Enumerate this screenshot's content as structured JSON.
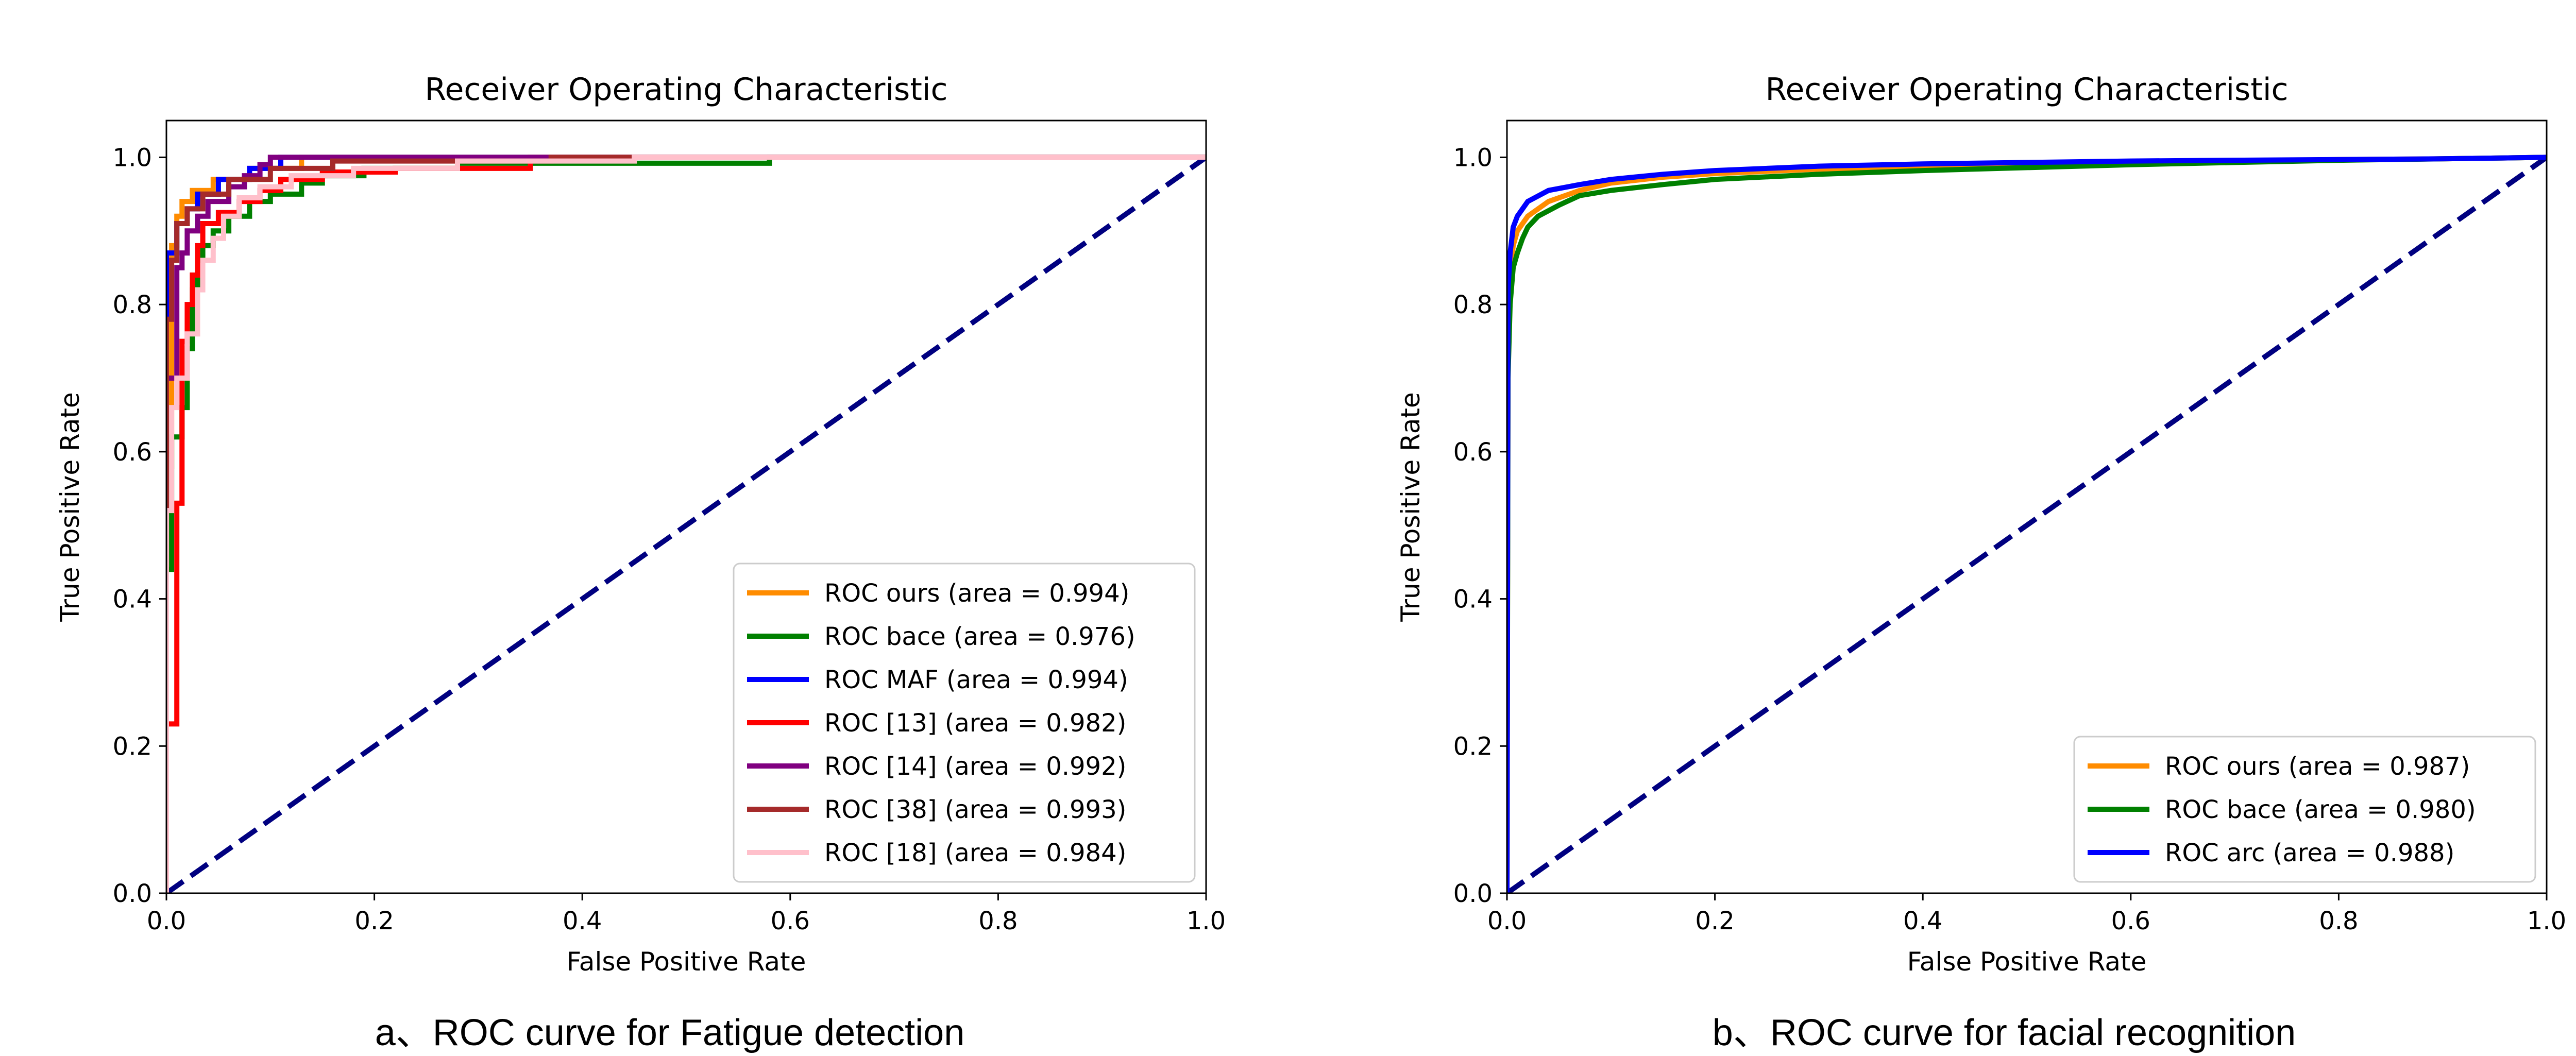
{
  "captions": {
    "left": "a、ROC curve for Fatigue detection",
    "right": "b、ROC curve for facial recognition"
  },
  "chart_data": [
    {
      "type": "line",
      "title": "Receiver Operating Characteristic",
      "xlabel": "False Positive Rate",
      "ylabel": "True Positive Rate",
      "xlim": [
        0.0,
        1.0
      ],
      "ylim": [
        0.0,
        1.05
      ],
      "xticks": [
        "0.0",
        "0.2",
        "0.4",
        "0.6",
        "0.8",
        "1.0"
      ],
      "yticks": [
        "0.0",
        "0.2",
        "0.4",
        "0.6",
        "0.8",
        "1.0"
      ],
      "grid": false,
      "legend_position": "lower-right",
      "series": [
        {
          "name": "ROC ours (area = 0.994)",
          "color": "#ff8c00",
          "points": [
            [
              0,
              0
            ],
            [
              0,
              0.58
            ],
            [
              0.005,
              0.58
            ],
            [
              0.005,
              0.88
            ],
            [
              0.01,
              0.88
            ],
            [
              0.01,
              0.92
            ],
            [
              0.015,
              0.92
            ],
            [
              0.015,
              0.94
            ],
            [
              0.025,
              0.94
            ],
            [
              0.025,
              0.955
            ],
            [
              0.045,
              0.955
            ],
            [
              0.045,
              0.97
            ],
            [
              0.08,
              0.97
            ],
            [
              0.08,
              0.985
            ],
            [
              0.13,
              0.985
            ],
            [
              0.13,
              1.0
            ],
            [
              1.0,
              1.0
            ]
          ]
        },
        {
          "name": "ROC bace (area = 0.976)",
          "color": "#008000",
          "points": [
            [
              0,
              0
            ],
            [
              0,
              0.44
            ],
            [
              0.005,
              0.44
            ],
            [
              0.005,
              0.62
            ],
            [
              0.015,
              0.62
            ],
            [
              0.015,
              0.66
            ],
            [
              0.02,
              0.66
            ],
            [
              0.02,
              0.74
            ],
            [
              0.025,
              0.74
            ],
            [
              0.025,
              0.82
            ],
            [
              0.03,
              0.82
            ],
            [
              0.03,
              0.86
            ],
            [
              0.035,
              0.86
            ],
            [
              0.035,
              0.88
            ],
            [
              0.045,
              0.88
            ],
            [
              0.045,
              0.9
            ],
            [
              0.06,
              0.9
            ],
            [
              0.06,
              0.92
            ],
            [
              0.08,
              0.92
            ],
            [
              0.08,
              0.94
            ],
            [
              0.1,
              0.94
            ],
            [
              0.1,
              0.95
            ],
            [
              0.13,
              0.95
            ],
            [
              0.13,
              0.965
            ],
            [
              0.15,
              0.965
            ],
            [
              0.15,
              0.975
            ],
            [
              0.19,
              0.975
            ],
            [
              0.19,
              0.985
            ],
            [
              0.28,
              0.985
            ],
            [
              0.28,
              0.992
            ],
            [
              0.58,
              0.992
            ],
            [
              0.58,
              1.0
            ],
            [
              1.0,
              1.0
            ]
          ]
        },
        {
          "name": "ROC MAF (area = 0.994)",
          "color": "#0000ff",
          "points": [
            [
              0,
              0
            ],
            [
              0,
              0.87
            ],
            [
              0.01,
              0.87
            ],
            [
              0.01,
              0.91
            ],
            [
              0.02,
              0.91
            ],
            [
              0.02,
              0.93
            ],
            [
              0.03,
              0.93
            ],
            [
              0.03,
              0.95
            ],
            [
              0.05,
              0.95
            ],
            [
              0.05,
              0.97
            ],
            [
              0.08,
              0.97
            ],
            [
              0.08,
              0.985
            ],
            [
              0.11,
              0.985
            ],
            [
              0.11,
              1.0
            ],
            [
              1.0,
              1.0
            ]
          ]
        },
        {
          "name": "ROC [13] (area = 0.982)",
          "color": "#ff0000",
          "points": [
            [
              0,
              0
            ],
            [
              0,
              0.23
            ],
            [
              0.01,
              0.23
            ],
            [
              0.01,
              0.53
            ],
            [
              0.015,
              0.53
            ],
            [
              0.015,
              0.75
            ],
            [
              0.02,
              0.75
            ],
            [
              0.02,
              0.8
            ],
            [
              0.025,
              0.8
            ],
            [
              0.025,
              0.84
            ],
            [
              0.03,
              0.84
            ],
            [
              0.03,
              0.88
            ],
            [
              0.035,
              0.88
            ],
            [
              0.035,
              0.91
            ],
            [
              0.05,
              0.91
            ],
            [
              0.05,
              0.925
            ],
            [
              0.07,
              0.925
            ],
            [
              0.07,
              0.94
            ],
            [
              0.09,
              0.94
            ],
            [
              0.09,
              0.955
            ],
            [
              0.11,
              0.955
            ],
            [
              0.11,
              0.97
            ],
            [
              0.15,
              0.97
            ],
            [
              0.15,
              0.98
            ],
            [
              0.22,
              0.98
            ],
            [
              0.22,
              0.985
            ],
            [
              0.35,
              0.985
            ],
            [
              0.35,
              1.0
            ],
            [
              1.0,
              1.0
            ]
          ]
        },
        {
          "name": "ROC [14] (area = 0.992)",
          "color": "#800080",
          "points": [
            [
              0,
              0
            ],
            [
              0,
              0.7
            ],
            [
              0.01,
              0.7
            ],
            [
              0.01,
              0.85
            ],
            [
              0.015,
              0.85
            ],
            [
              0.015,
              0.87
            ],
            [
              0.02,
              0.87
            ],
            [
              0.02,
              0.9
            ],
            [
              0.03,
              0.9
            ],
            [
              0.03,
              0.92
            ],
            [
              0.04,
              0.92
            ],
            [
              0.04,
              0.94
            ],
            [
              0.06,
              0.94
            ],
            [
              0.06,
              0.96
            ],
            [
              0.075,
              0.96
            ],
            [
              0.075,
              0.975
            ],
            [
              0.09,
              0.975
            ],
            [
              0.09,
              0.99
            ],
            [
              0.1,
              0.99
            ],
            [
              0.1,
              1.0
            ],
            [
              1.0,
              1.0
            ]
          ]
        },
        {
          "name": "ROC [38] (area = 0.993)",
          "color": "#a52a2a",
          "points": [
            [
              0,
              0
            ],
            [
              0,
              0.78
            ],
            [
              0.005,
              0.78
            ],
            [
              0.005,
              0.86
            ],
            [
              0.01,
              0.86
            ],
            [
              0.01,
              0.91
            ],
            [
              0.02,
              0.91
            ],
            [
              0.02,
              0.93
            ],
            [
              0.035,
              0.93
            ],
            [
              0.035,
              0.95
            ],
            [
              0.06,
              0.95
            ],
            [
              0.06,
              0.97
            ],
            [
              0.1,
              0.97
            ],
            [
              0.1,
              0.985
            ],
            [
              0.16,
              0.985
            ],
            [
              0.16,
              0.995
            ],
            [
              0.37,
              0.995
            ],
            [
              0.37,
              1.0
            ],
            [
              1.0,
              1.0
            ]
          ]
        },
        {
          "name": "ROC [18] (area = 0.984)",
          "color": "#ffc0cb",
          "points": [
            [
              0,
              0
            ],
            [
              0,
              0.52
            ],
            [
              0.005,
              0.52
            ],
            [
              0.005,
              0.66
            ],
            [
              0.01,
              0.66
            ],
            [
              0.01,
              0.7
            ],
            [
              0.02,
              0.7
            ],
            [
              0.02,
              0.76
            ],
            [
              0.03,
              0.76
            ],
            [
              0.03,
              0.82
            ],
            [
              0.035,
              0.82
            ],
            [
              0.035,
              0.86
            ],
            [
              0.045,
              0.86
            ],
            [
              0.045,
              0.89
            ],
            [
              0.055,
              0.89
            ],
            [
              0.055,
              0.92
            ],
            [
              0.07,
              0.92
            ],
            [
              0.07,
              0.945
            ],
            [
              0.09,
              0.945
            ],
            [
              0.09,
              0.96
            ],
            [
              0.12,
              0.96
            ],
            [
              0.12,
              0.975
            ],
            [
              0.18,
              0.975
            ],
            [
              0.18,
              0.985
            ],
            [
              0.28,
              0.985
            ],
            [
              0.28,
              0.995
            ],
            [
              0.45,
              0.995
            ],
            [
              0.45,
              1.0
            ],
            [
              1.0,
              1.0
            ]
          ]
        }
      ],
      "reference_line": {
        "points": [
          [
            0,
            0
          ],
          [
            1,
            1
          ]
        ],
        "color": "#000080",
        "style": "dashed"
      }
    },
    {
      "type": "line",
      "title": "Receiver Operating Characteristic",
      "xlabel": "False Positive Rate",
      "ylabel": "True Positive Rate",
      "xlim": [
        0.0,
        1.0
      ],
      "ylim": [
        0.0,
        1.05
      ],
      "xticks": [
        "0.0",
        "0.2",
        "0.4",
        "0.6",
        "0.8",
        "1.0"
      ],
      "yticks": [
        "0.0",
        "0.2",
        "0.4",
        "0.6",
        "0.8",
        "1.0"
      ],
      "grid": false,
      "legend_position": "lower-right",
      "series": [
        {
          "name": "ROC ours (area = 0.987)",
          "color": "#ff8c00",
          "points": [
            [
              0,
              0
            ],
            [
              0.001,
              0.75
            ],
            [
              0.003,
              0.84
            ],
            [
              0.006,
              0.88
            ],
            [
              0.01,
              0.9
            ],
            [
              0.02,
              0.92
            ],
            [
              0.04,
              0.94
            ],
            [
              0.07,
              0.955
            ],
            [
              0.1,
              0.965
            ],
            [
              0.15,
              0.973
            ],
            [
              0.2,
              0.978
            ],
            [
              0.3,
              0.984
            ],
            [
              0.4,
              0.988
            ],
            [
              0.5,
              0.99
            ],
            [
              0.6,
              0.993
            ],
            [
              0.7,
              0.995
            ],
            [
              0.8,
              0.997
            ],
            [
              0.9,
              0.998
            ],
            [
              1.0,
              1.0
            ]
          ]
        },
        {
          "name": "ROC bace (area = 0.980)",
          "color": "#008000",
          "points": [
            [
              0,
              0
            ],
            [
              0.001,
              0.7
            ],
            [
              0.003,
              0.8
            ],
            [
              0.006,
              0.85
            ],
            [
              0.01,
              0.87
            ],
            [
              0.015,
              0.89
            ],
            [
              0.02,
              0.905
            ],
            [
              0.03,
              0.92
            ],
            [
              0.05,
              0.935
            ],
            [
              0.07,
              0.948
            ],
            [
              0.1,
              0.955
            ],
            [
              0.15,
              0.963
            ],
            [
              0.2,
              0.97
            ],
            [
              0.3,
              0.977
            ],
            [
              0.4,
              0.982
            ],
            [
              0.5,
              0.986
            ],
            [
              0.6,
              0.99
            ],
            [
              0.7,
              0.993
            ],
            [
              0.8,
              0.996
            ],
            [
              0.9,
              0.998
            ],
            [
              1.0,
              1.0
            ]
          ]
        },
        {
          "name": "ROC arc (area = 0.988)",
          "color": "#0000ff",
          "points": [
            [
              0,
              0
            ],
            [
              0.001,
              0.82
            ],
            [
              0.003,
              0.87
            ],
            [
              0.006,
              0.905
            ],
            [
              0.01,
              0.92
            ],
            [
              0.015,
              0.93
            ],
            [
              0.02,
              0.94
            ],
            [
              0.04,
              0.955
            ],
            [
              0.07,
              0.963
            ],
            [
              0.1,
              0.97
            ],
            [
              0.15,
              0.977
            ],
            [
              0.2,
              0.982
            ],
            [
              0.3,
              0.988
            ],
            [
              0.4,
              0.991
            ],
            [
              0.5,
              0.993
            ],
            [
              0.6,
              0.995
            ],
            [
              0.7,
              0.996
            ],
            [
              0.8,
              0.997
            ],
            [
              0.9,
              0.998
            ],
            [
              1.0,
              1.0
            ]
          ]
        }
      ],
      "reference_line": {
        "points": [
          [
            0,
            0
          ],
          [
            1,
            1
          ]
        ],
        "color": "#000080",
        "style": "dashed"
      }
    }
  ]
}
